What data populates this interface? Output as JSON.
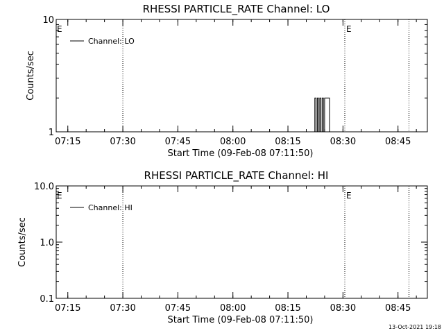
{
  "footer": {
    "timestamp": "13-Oct-2021 19:18"
  },
  "chart_data": [
    {
      "type": "line",
      "title": "RHESSI PARTICLE_RATE Channel: LO",
      "xlabel": "Start Time (09-Feb-08 07:11:50)",
      "ylabel": "Counts/sec",
      "y_scale": "log",
      "ylim": [
        1,
        10
      ],
      "y_ticks": [
        {
          "v": 1,
          "label": "1"
        },
        {
          "v": 10,
          "label": "10"
        }
      ],
      "x_range": [
        "07:11:50",
        "08:53:00"
      ],
      "x_ticks": [
        "07:15",
        "07:30",
        "07:45",
        "08:00",
        "08:15",
        "08:30",
        "08:45"
      ],
      "legend": {
        "label": "Channel: LO",
        "position": "top-left"
      },
      "event_lines": [
        {
          "time": "07:30:00",
          "label": ""
        },
        {
          "time": "08:30:30",
          "label": "E"
        },
        {
          "time": "08:48:00",
          "label": ""
        }
      ],
      "left_marker": "E",
      "series": [
        {
          "name": "Channel: LO",
          "x": [
            "08:22:00",
            "08:22:20",
            "08:22:40",
            "08:23:00",
            "08:23:20",
            "08:23:40",
            "08:24:00",
            "08:24:20",
            "08:24:40",
            "08:25:00",
            "08:25:20",
            "08:25:40",
            "08:26:00",
            "08:26:20",
            "08:26:40",
            "08:27:00"
          ],
          "values": [
            1,
            2,
            1,
            2,
            1,
            2,
            1,
            2,
            1,
            2,
            2,
            2,
            2,
            1,
            1,
            1
          ]
        }
      ]
    },
    {
      "type": "line",
      "title": "RHESSI PARTICLE_RATE Channel: HI",
      "xlabel": "Start Time (09-Feb-08 07:11:50)",
      "ylabel": "Counts/sec",
      "y_scale": "log",
      "ylim": [
        0.1,
        10
      ],
      "y_ticks": [
        {
          "v": 0.1,
          "label": "0.1"
        },
        {
          "v": 1,
          "label": "1.0"
        },
        {
          "v": 10,
          "label": "10.0"
        }
      ],
      "x_range": [
        "07:11:50",
        "08:53:00"
      ],
      "x_ticks": [
        "07:15",
        "07:30",
        "07:45",
        "08:00",
        "08:15",
        "08:30",
        "08:45"
      ],
      "legend": {
        "label": "Channel: HI",
        "position": "top-left"
      },
      "event_lines": [
        {
          "time": "07:30:00",
          "label": ""
        },
        {
          "time": "08:30:30",
          "label": "E"
        },
        {
          "time": "08:48:00",
          "label": ""
        }
      ],
      "left_marker": "E",
      "series": [
        {
          "name": "Channel: HI",
          "x": [],
          "values": []
        }
      ]
    }
  ]
}
